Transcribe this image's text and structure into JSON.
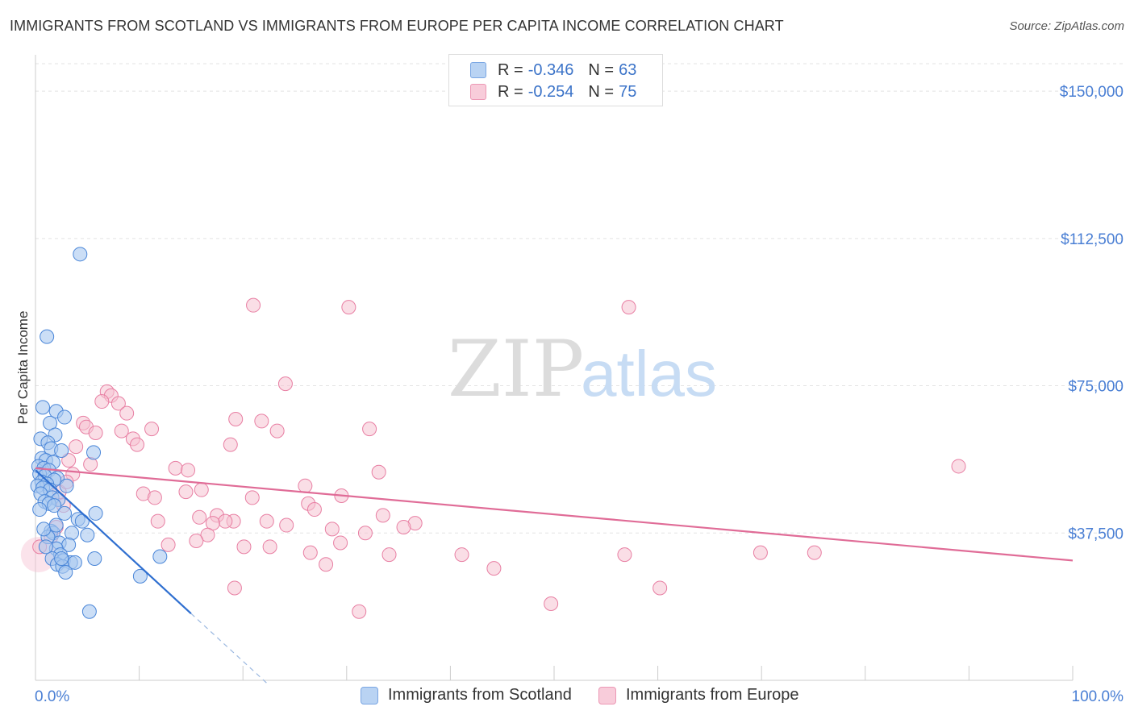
{
  "title": "IMMIGRANTS FROM SCOTLAND VS IMMIGRANTS FROM EUROPE PER CAPITA INCOME CORRELATION CHART",
  "source": "Source: ZipAtlas.com",
  "watermark": {
    "zip": "ZIP",
    "atlas": "atlas"
  },
  "legend": {
    "rows": [
      {
        "r_label": "R = ",
        "r_value": "-0.346",
        "n_label": "N = ",
        "n_value": "63"
      },
      {
        "r_label": "R = ",
        "r_value": "-0.254",
        "n_label": "N = ",
        "n_value": "75"
      }
    ]
  },
  "colors": {
    "scotland_fill": "#a9c8f0",
    "scotland_stroke": "#4a86d8",
    "scotland_line": "#2f6fd0",
    "europe_fill": "#f6c2d2",
    "europe_stroke": "#e87fa3",
    "europe_line": "#e06c97",
    "tick_text": "#4a7fd4"
  },
  "chart_data": {
    "type": "scatter",
    "title": "IMMIGRANTS FROM SCOTLAND VS IMMIGRANTS FROM EUROPE PER CAPITA INCOME CORRELATION CHART",
    "xlabel": "",
    "ylabel": "Per Capita Income",
    "xlim": [
      0,
      100
    ],
    "ylim": [
      0,
      157000
    ],
    "x_tick_labels": [
      "0.0%",
      "100.0%"
    ],
    "y_ticks": [
      37500,
      75000,
      112500,
      150000
    ],
    "y_tick_labels": [
      "$37,500",
      "$75,000",
      "$112,500",
      "$150,000"
    ],
    "grid": true,
    "legend_position": "bottom",
    "series": [
      {
        "name": "Immigrants from Scotland",
        "R": -0.346,
        "N": 63,
        "trend": {
          "x0": 0,
          "y0": 53500,
          "x1": 15,
          "y1": 17000,
          "dash_to_x": 22.5,
          "dash_to_y": -1200
        },
        "points": [
          [
            4.3,
            108500
          ],
          [
            1.1,
            87500
          ],
          [
            0.7,
            69500
          ],
          [
            2.0,
            68500
          ],
          [
            2.8,
            67000
          ],
          [
            1.4,
            65500
          ],
          [
            0.5,
            61500
          ],
          [
            1.9,
            62500
          ],
          [
            1.2,
            60500
          ],
          [
            1.5,
            59000
          ],
          [
            2.5,
            58500
          ],
          [
            5.6,
            58000
          ],
          [
            0.6,
            56500
          ],
          [
            1.0,
            56000
          ],
          [
            1.7,
            55500
          ],
          [
            0.3,
            54500
          ],
          [
            0.8,
            54000
          ],
          [
            1.3,
            53500
          ],
          [
            0.4,
            52500
          ],
          [
            0.9,
            52000
          ],
          [
            2.1,
            51500
          ],
          [
            1.8,
            51000
          ],
          [
            0.6,
            50500
          ],
          [
            1.1,
            50000
          ],
          [
            0.2,
            49500
          ],
          [
            3.0,
            49500
          ],
          [
            0.7,
            49000
          ],
          [
            1.4,
            48500
          ],
          [
            0.5,
            47500
          ],
          [
            1.6,
            46500
          ],
          [
            2.2,
            46000
          ],
          [
            0.9,
            45500
          ],
          [
            1.3,
            45000
          ],
          [
            1.8,
            44500
          ],
          [
            2.8,
            42500
          ],
          [
            5.8,
            42500
          ],
          [
            4.1,
            41000
          ],
          [
            4.5,
            40500
          ],
          [
            1.5,
            38000
          ],
          [
            3.5,
            37500
          ],
          [
            5.0,
            37000
          ],
          [
            1.7,
            37500
          ],
          [
            2.3,
            35000
          ],
          [
            3.2,
            34500
          ],
          [
            2.0,
            33500
          ],
          [
            2.4,
            32000
          ],
          [
            1.6,
            31000
          ],
          [
            2.7,
            30500
          ],
          [
            3.4,
            30000
          ],
          [
            2.1,
            29500
          ],
          [
            5.7,
            31000
          ],
          [
            12.0,
            31500
          ],
          [
            2.6,
            29000
          ],
          [
            2.9,
            27500
          ],
          [
            10.1,
            26500
          ],
          [
            5.2,
            17500
          ],
          [
            0.4,
            43500
          ],
          [
            1.2,
            36500
          ],
          [
            0.8,
            38500
          ],
          [
            2.5,
            31000
          ],
          [
            3.8,
            30000
          ],
          [
            1.0,
            34000
          ],
          [
            2.0,
            39500
          ]
        ]
      },
      {
        "name": "Immigrants from Europe",
        "R": -0.254,
        "N": 75,
        "trend": {
          "x0": 0,
          "y0": 54000,
          "x1": 100,
          "y1": 30500
        },
        "points": [
          [
            21.0,
            95500
          ],
          [
            30.2,
            95000
          ],
          [
            57.2,
            95000
          ],
          [
            24.1,
            75500
          ],
          [
            6.9,
            73500
          ],
          [
            7.3,
            72500
          ],
          [
            6.4,
            71000
          ],
          [
            8.0,
            70500
          ],
          [
            8.8,
            68000
          ],
          [
            19.3,
            66500
          ],
          [
            21.8,
            66000
          ],
          [
            4.6,
            65500
          ],
          [
            4.9,
            64500
          ],
          [
            11.2,
            64000
          ],
          [
            8.3,
            63500
          ],
          [
            23.3,
            63500
          ],
          [
            32.2,
            64000
          ],
          [
            5.8,
            63000
          ],
          [
            9.4,
            61500
          ],
          [
            9.8,
            60000
          ],
          [
            18.8,
            60000
          ],
          [
            3.9,
            59500
          ],
          [
            3.2,
            56000
          ],
          [
            5.3,
            55000
          ],
          [
            89.0,
            54500
          ],
          [
            13.5,
            54000
          ],
          [
            14.7,
            53500
          ],
          [
            33.1,
            53000
          ],
          [
            3.6,
            52500
          ],
          [
            26.0,
            49500
          ],
          [
            2.3,
            48000
          ],
          [
            14.5,
            48000
          ],
          [
            16.0,
            48500
          ],
          [
            10.4,
            47500
          ],
          [
            11.5,
            46500
          ],
          [
            20.9,
            46500
          ],
          [
            29.5,
            47000
          ],
          [
            26.3,
            45000
          ],
          [
            2.7,
            44500
          ],
          [
            26.9,
            43500
          ],
          [
            33.5,
            42000
          ],
          [
            15.8,
            41500
          ],
          [
            17.5,
            42000
          ],
          [
            19.1,
            40500
          ],
          [
            11.8,
            40500
          ],
          [
            22.3,
            40500
          ],
          [
            18.3,
            40500
          ],
          [
            17.1,
            40000
          ],
          [
            24.2,
            39500
          ],
          [
            36.6,
            40000
          ],
          [
            35.5,
            39000
          ],
          [
            28.6,
            38500
          ],
          [
            31.8,
            37500
          ],
          [
            16.6,
            37000
          ],
          [
            15.5,
            35500
          ],
          [
            29.4,
            35000
          ],
          [
            12.8,
            34500
          ],
          [
            20.1,
            34000
          ],
          [
            22.6,
            34000
          ],
          [
            26.5,
            32500
          ],
          [
            34.1,
            32000
          ],
          [
            41.1,
            32000
          ],
          [
            56.8,
            32000
          ],
          [
            69.9,
            32500
          ],
          [
            75.1,
            32500
          ],
          [
            28.0,
            29500
          ],
          [
            44.2,
            28500
          ],
          [
            19.2,
            23500
          ],
          [
            60.2,
            23500
          ],
          [
            49.7,
            19500
          ],
          [
            31.2,
            17500
          ],
          [
            1.5,
            36500
          ],
          [
            2.0,
            39000
          ],
          [
            3.0,
            50500
          ],
          [
            0.4,
            34000
          ]
        ]
      }
    ]
  },
  "bottom_legend": [
    {
      "label": "Immigrants from Scotland"
    },
    {
      "label": "Immigrants from Europe"
    }
  ]
}
